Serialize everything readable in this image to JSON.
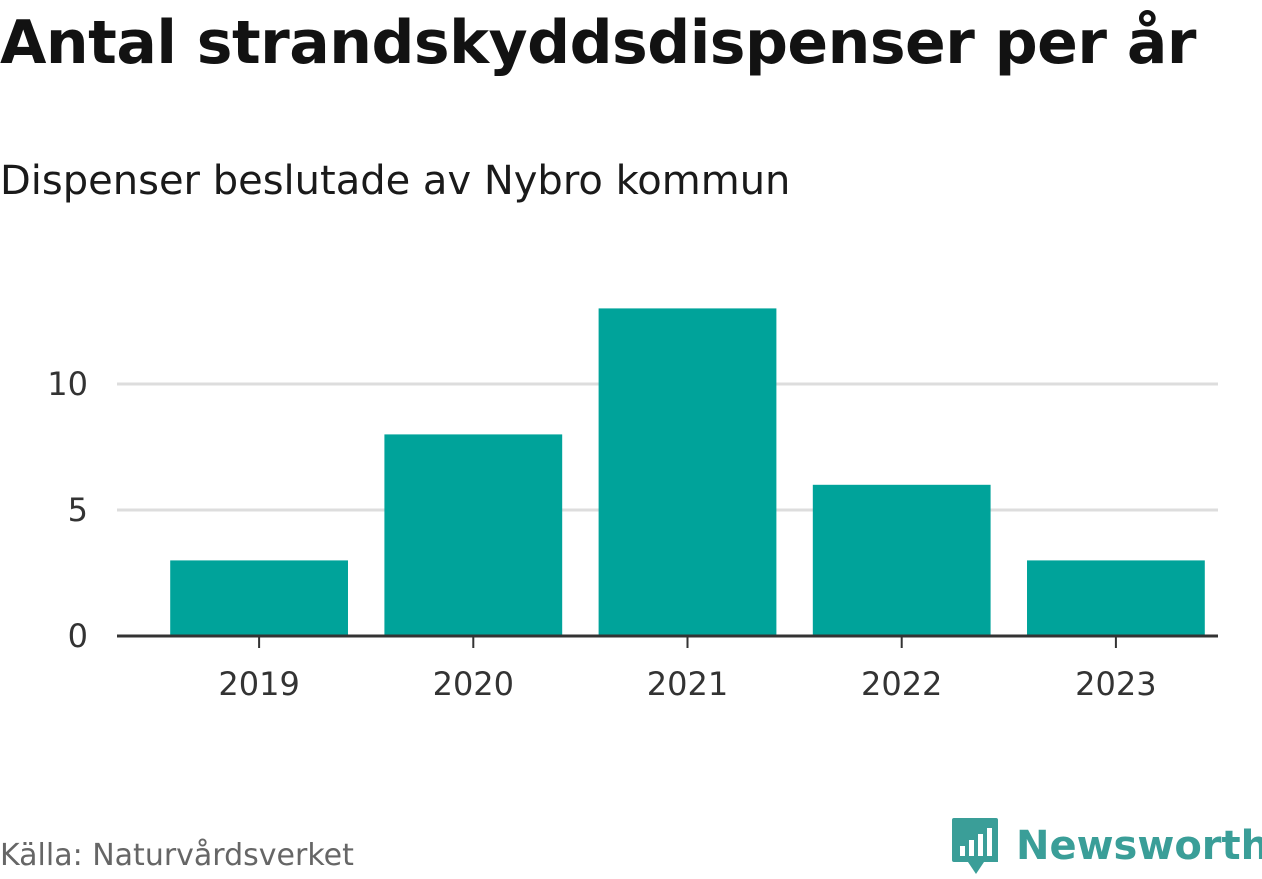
{
  "header": {
    "title": "Antal strandskyddsdispenser per år",
    "subtitle": "Dispenser beslutade av Nybro kommun"
  },
  "footer": {
    "source": "Källa: Naturvårdsverket",
    "brand": "Newsworthy",
    "brand_color": "#3a9e98"
  },
  "chart_data": {
    "type": "bar",
    "categories": [
      "2019",
      "2020",
      "2021",
      "2022",
      "2023"
    ],
    "values": [
      3,
      8,
      13,
      6,
      3
    ],
    "title": "Antal strandskyddsdispenser per år",
    "subtitle": "Dispenser beslutade av Nybro kommun",
    "xlabel": "",
    "ylabel": "",
    "ylim": [
      0,
      14
    ],
    "yticks": [
      0,
      5,
      10
    ],
    "grid": true,
    "bar_color": "#00a39a",
    "legend": "none"
  }
}
